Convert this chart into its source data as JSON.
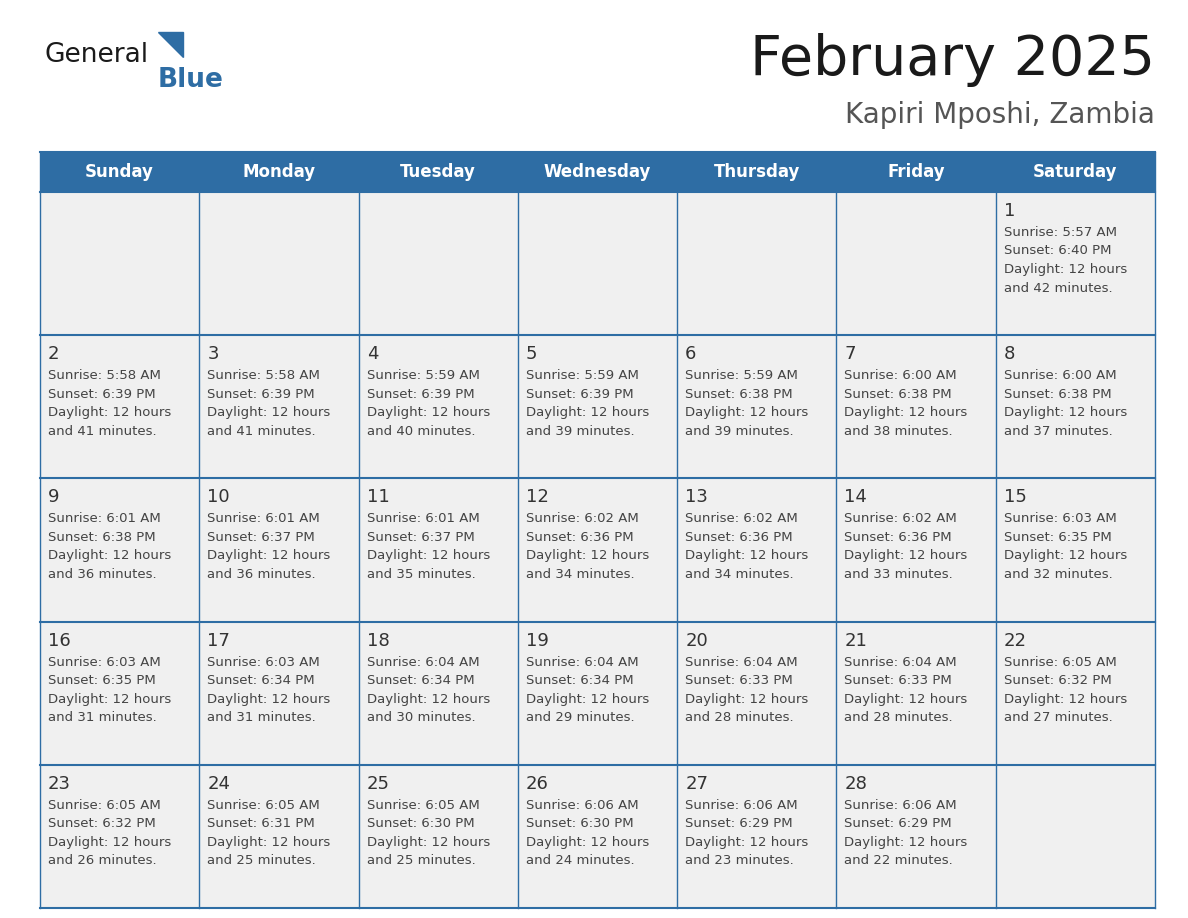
{
  "title": "February 2025",
  "subtitle": "Kapiri Mposhi, Zambia",
  "header_color": "#2e6da4",
  "header_text_color": "#ffffff",
  "cell_bg_color": "#f0f0f0",
  "cell_border_color": "#2e6da4",
  "day_num_color": "#333333",
  "text_color": "#444444",
  "days_of_week": [
    "Sunday",
    "Monday",
    "Tuesday",
    "Wednesday",
    "Thursday",
    "Friday",
    "Saturday"
  ],
  "logo_general_color": "#1a1a1a",
  "logo_blue_color": "#2e6da4",
  "calendar_data": [
    [
      null,
      null,
      null,
      null,
      null,
      null,
      {
        "day": 1,
        "sunrise": "5:57 AM",
        "sunset": "6:40 PM",
        "daylight": "12 hours and 42 minutes."
      }
    ],
    [
      {
        "day": 2,
        "sunrise": "5:58 AM",
        "sunset": "6:39 PM",
        "daylight": "12 hours and 41 minutes."
      },
      {
        "day": 3,
        "sunrise": "5:58 AM",
        "sunset": "6:39 PM",
        "daylight": "12 hours and 41 minutes."
      },
      {
        "day": 4,
        "sunrise": "5:59 AM",
        "sunset": "6:39 PM",
        "daylight": "12 hours and 40 minutes."
      },
      {
        "day": 5,
        "sunrise": "5:59 AM",
        "sunset": "6:39 PM",
        "daylight": "12 hours and 39 minutes."
      },
      {
        "day": 6,
        "sunrise": "5:59 AM",
        "sunset": "6:38 PM",
        "daylight": "12 hours and 39 minutes."
      },
      {
        "day": 7,
        "sunrise": "6:00 AM",
        "sunset": "6:38 PM",
        "daylight": "12 hours and 38 minutes."
      },
      {
        "day": 8,
        "sunrise": "6:00 AM",
        "sunset": "6:38 PM",
        "daylight": "12 hours and 37 minutes."
      }
    ],
    [
      {
        "day": 9,
        "sunrise": "6:01 AM",
        "sunset": "6:38 PM",
        "daylight": "12 hours and 36 minutes."
      },
      {
        "day": 10,
        "sunrise": "6:01 AM",
        "sunset": "6:37 PM",
        "daylight": "12 hours and 36 minutes."
      },
      {
        "day": 11,
        "sunrise": "6:01 AM",
        "sunset": "6:37 PM",
        "daylight": "12 hours and 35 minutes."
      },
      {
        "day": 12,
        "sunrise": "6:02 AM",
        "sunset": "6:36 PM",
        "daylight": "12 hours and 34 minutes."
      },
      {
        "day": 13,
        "sunrise": "6:02 AM",
        "sunset": "6:36 PM",
        "daylight": "12 hours and 34 minutes."
      },
      {
        "day": 14,
        "sunrise": "6:02 AM",
        "sunset": "6:36 PM",
        "daylight": "12 hours and 33 minutes."
      },
      {
        "day": 15,
        "sunrise": "6:03 AM",
        "sunset": "6:35 PM",
        "daylight": "12 hours and 32 minutes."
      }
    ],
    [
      {
        "day": 16,
        "sunrise": "6:03 AM",
        "sunset": "6:35 PM",
        "daylight": "12 hours and 31 minutes."
      },
      {
        "day": 17,
        "sunrise": "6:03 AM",
        "sunset": "6:34 PM",
        "daylight": "12 hours and 31 minutes."
      },
      {
        "day": 18,
        "sunrise": "6:04 AM",
        "sunset": "6:34 PM",
        "daylight": "12 hours and 30 minutes."
      },
      {
        "day": 19,
        "sunrise": "6:04 AM",
        "sunset": "6:34 PM",
        "daylight": "12 hours and 29 minutes."
      },
      {
        "day": 20,
        "sunrise": "6:04 AM",
        "sunset": "6:33 PM",
        "daylight": "12 hours and 28 minutes."
      },
      {
        "day": 21,
        "sunrise": "6:04 AM",
        "sunset": "6:33 PM",
        "daylight": "12 hours and 28 minutes."
      },
      {
        "day": 22,
        "sunrise": "6:05 AM",
        "sunset": "6:32 PM",
        "daylight": "12 hours and 27 minutes."
      }
    ],
    [
      {
        "day": 23,
        "sunrise": "6:05 AM",
        "sunset": "6:32 PM",
        "daylight": "12 hours and 26 minutes."
      },
      {
        "day": 24,
        "sunrise": "6:05 AM",
        "sunset": "6:31 PM",
        "daylight": "12 hours and 25 minutes."
      },
      {
        "day": 25,
        "sunrise": "6:05 AM",
        "sunset": "6:30 PM",
        "daylight": "12 hours and 25 minutes."
      },
      {
        "day": 26,
        "sunrise": "6:06 AM",
        "sunset": "6:30 PM",
        "daylight": "12 hours and 24 minutes."
      },
      {
        "day": 27,
        "sunrise": "6:06 AM",
        "sunset": "6:29 PM",
        "daylight": "12 hours and 23 minutes."
      },
      {
        "day": 28,
        "sunrise": "6:06 AM",
        "sunset": "6:29 PM",
        "daylight": "12 hours and 22 minutes."
      },
      null
    ]
  ]
}
